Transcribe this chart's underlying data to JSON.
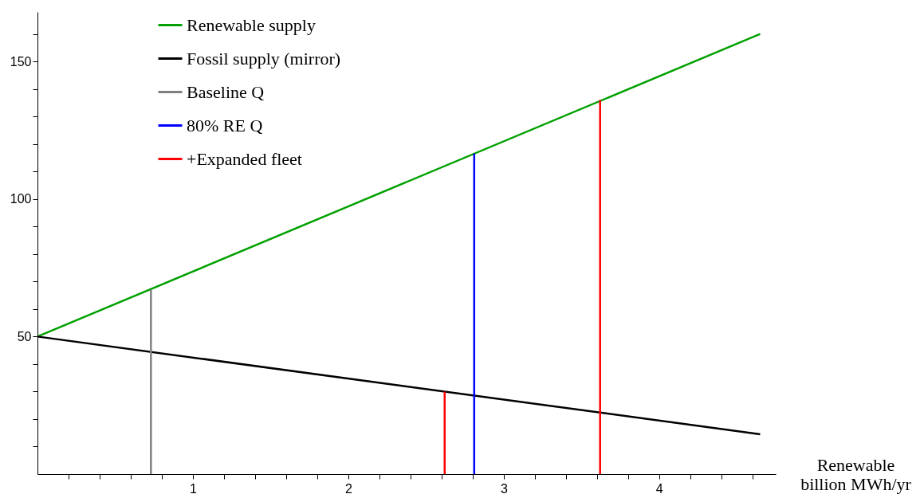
{
  "chart_data": {
    "type": "line",
    "xlabel": "Renewable\nbillion MWh/yr",
    "xlim": [
      0,
      4.75
    ],
    "ylim": [
      0,
      168
    ],
    "xticks": [
      {
        "value": 0.2,
        "label": null
      },
      {
        "value": 0.4,
        "label": null
      },
      {
        "value": 0.6,
        "label": null
      },
      {
        "value": 0.8,
        "label": null
      },
      1,
      {
        "value": 1.2,
        "label": null
      },
      {
        "value": 1.4,
        "label": null
      },
      {
        "value": 1.6,
        "label": null
      },
      {
        "value": 1.8,
        "label": null
      },
      2,
      {
        "value": 2.2,
        "label": null
      },
      {
        "value": 2.4,
        "label": null
      },
      {
        "value": 2.6,
        "label": null
      },
      {
        "value": 2.8,
        "label": null
      },
      3,
      {
        "value": 3.2,
        "label": null
      },
      {
        "value": 3.4,
        "label": null
      },
      {
        "value": 3.6,
        "label": null
      },
      {
        "value": 3.8,
        "label": null
      },
      4,
      {
        "value": 4.2,
        "label": null
      },
      {
        "value": 4.4,
        "label": null
      },
      {
        "value": 4.6,
        "label": null
      }
    ],
    "yticks": [
      {
        "value": 10,
        "label": null
      },
      {
        "value": 20,
        "label": null
      },
      {
        "value": 30,
        "label": null
      },
      {
        "value": 40,
        "label": null
      },
      50,
      {
        "value": 60,
        "label": null
      },
      {
        "value": 70,
        "label": null
      },
      {
        "value": 80,
        "label": null
      },
      {
        "value": 90,
        "label": null
      },
      100,
      {
        "value": 110,
        "label": null
      },
      {
        "value": 120,
        "label": null
      },
      {
        "value": 130,
        "label": null
      },
      {
        "value": 140,
        "label": null
      },
      150,
      {
        "value": 160,
        "label": null
      }
    ],
    "grid": false,
    "legend": "top left",
    "marker": "none",
    "line_style": "solid",
    "series": [
      {
        "name": "Renewable supply",
        "color": "#00a000",
        "x": [
          0,
          4.65
        ],
        "values": [
          50,
          160
        ]
      },
      {
        "name": "Fossil supply (mirror)",
        "color": "#000000",
        "x": [
          0,
          4.65
        ],
        "values": [
          50,
          14.5
        ]
      },
      {
        "name": "Baseline Q",
        "color": "#808080",
        "x": [
          0.73,
          0.73
        ],
        "values": [
          0,
          67
        ]
      },
      {
        "name": "80% RE Q",
        "color": "#0000ff",
        "x": [
          2.81,
          2.81
        ],
        "values": [
          0,
          116.5
        ]
      },
      {
        "name": "+Expanded fleet",
        "color": "#ff0000",
        "x": [
          2.62,
          2.62,
          3.12,
          3.62,
          3.62
        ],
        "values": [
          0,
          30,
          null,
          0,
          136
        ]
      }
    ]
  }
}
